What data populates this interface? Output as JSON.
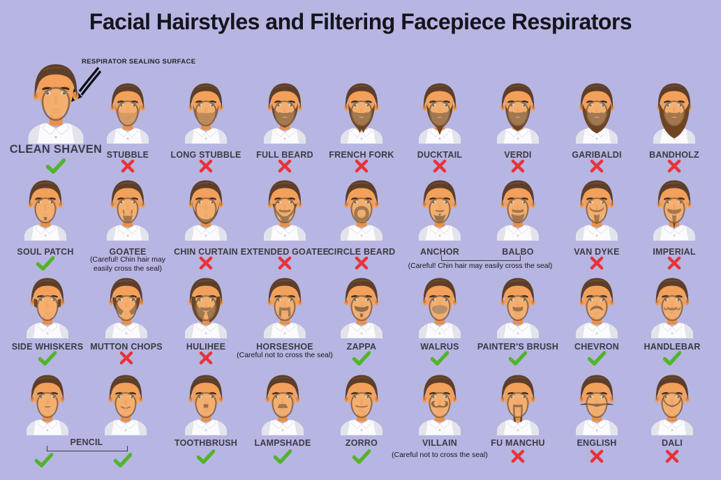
{
  "title": "Facial Hairstyles and Filtering Facepiece Respirators",
  "annotation": {
    "label": "RESPIRATOR SEALING SURFACE"
  },
  "marks": {
    "check_color": "#53b32c",
    "cross_color": "#e73238"
  },
  "background_color": "#b7b5e2",
  "items": [
    {
      "id": "clean-shaven",
      "label": "CLEAN SHAVEN",
      "mark": "check",
      "icon": "face-clean-shaven"
    },
    {
      "id": "stubble",
      "label": "STUBBLE",
      "mark": "cross",
      "icon": "face-stubble"
    },
    {
      "id": "long-stubble",
      "label": "LONG STUBBLE",
      "mark": "cross",
      "icon": "face-long-stubble"
    },
    {
      "id": "full-beard",
      "label": "FULL BEARD",
      "mark": "cross",
      "icon": "face-full-beard"
    },
    {
      "id": "french-fork",
      "label": "FRENCH FORK",
      "mark": "cross",
      "icon": "face-french-fork"
    },
    {
      "id": "ducktail",
      "label": "DUCKTAIL",
      "mark": "cross",
      "icon": "face-ducktail"
    },
    {
      "id": "verdi",
      "label": "VERDI",
      "mark": "cross",
      "icon": "face-verdi"
    },
    {
      "id": "garibaldi",
      "label": "GARIBALDI",
      "mark": "cross",
      "icon": "face-garibaldi"
    },
    {
      "id": "bandholz",
      "label": "BANDHOLZ",
      "mark": "cross",
      "icon": "face-bandholz"
    },
    {
      "id": "soul-patch",
      "label": "SOUL PATCH",
      "mark": "check",
      "icon": "face-soul-patch"
    },
    {
      "id": "goatee",
      "label": "GOATEE",
      "mark": "none",
      "caption": "(Careful! Chin hair may\neasily cross the seal)",
      "icon": "face-goatee"
    },
    {
      "id": "chin-curtain",
      "label": "CHIN CURTAIN",
      "mark": "cross",
      "icon": "face-chin-curtain"
    },
    {
      "id": "extended-goatee",
      "label": "EXTENDED GOATEE",
      "mark": "cross",
      "icon": "face-extended-goatee"
    },
    {
      "id": "circle-beard",
      "label": "CIRCLE BEARD",
      "mark": "cross",
      "icon": "face-circle-beard"
    },
    {
      "id": "anchor",
      "label": "ANCHOR",
      "mark": "none",
      "icon": "face-anchor"
    },
    {
      "id": "balbo",
      "label": "BALBO",
      "mark": "none",
      "icon": "face-balbo"
    },
    {
      "id": "van-dyke",
      "label": "VAN DYKE",
      "mark": "cross",
      "icon": "face-van-dyke"
    },
    {
      "id": "imperial",
      "label": "IMPERIAL",
      "mark": "cross",
      "icon": "face-imperial"
    },
    {
      "id": "side-whiskers",
      "label": "SIDE WHISKERS",
      "mark": "check",
      "icon": "face-side-whiskers"
    },
    {
      "id": "mutton-chops",
      "label": "MUTTON CHOPS",
      "mark": "cross",
      "icon": "face-mutton-chops"
    },
    {
      "id": "hulihee",
      "label": "HULIHEE",
      "mark": "cross",
      "icon": "face-hulihee"
    },
    {
      "id": "horseshoe",
      "label": "HORSESHOE",
      "mark": "none",
      "caption": "(Careful not to cross the seal)",
      "icon": "face-horseshoe"
    },
    {
      "id": "zappa",
      "label": "ZAPPA",
      "mark": "check",
      "icon": "face-zappa"
    },
    {
      "id": "walrus",
      "label": "WALRUS",
      "mark": "check",
      "icon": "face-walrus"
    },
    {
      "id": "painters-brush",
      "label": "PAINTER'S BRUSH",
      "mark": "check",
      "icon": "face-painters-brush"
    },
    {
      "id": "chevron",
      "label": "CHEVRON",
      "mark": "check",
      "icon": "face-chevron"
    },
    {
      "id": "handlebar",
      "label": "HANDLEBAR",
      "mark": "check",
      "icon": "face-handlebar"
    },
    {
      "id": "pencil-a",
      "label": "",
      "mark": "check",
      "icon": "face-pencil"
    },
    {
      "id": "pencil-b",
      "label": "",
      "mark": "check",
      "icon": "face-pencil-wide"
    },
    {
      "id": "toothbrush",
      "label": "TOOTHBRUSH",
      "mark": "check",
      "icon": "face-toothbrush"
    },
    {
      "id": "lampshade",
      "label": "LAMPSHADE",
      "mark": "check",
      "icon": "face-lampshade"
    },
    {
      "id": "zorro",
      "label": "ZORRO",
      "mark": "check",
      "icon": "face-zorro"
    },
    {
      "id": "villain",
      "label": "VILLAIN",
      "mark": "none",
      "caption": "(Careful not to cross the seal)",
      "icon": "face-villain"
    },
    {
      "id": "fu-manchu",
      "label": "FU MANCHU",
      "mark": "cross",
      "icon": "face-fu-manchu"
    },
    {
      "id": "english",
      "label": "ENGLISH",
      "mark": "cross",
      "icon": "face-english"
    },
    {
      "id": "dali",
      "label": "DALI",
      "mark": "cross",
      "icon": "face-dali"
    }
  ],
  "groups": [
    {
      "id": "pencil",
      "label": "PENCIL",
      "members": [
        "pencil-a",
        "pencil-b"
      ]
    },
    {
      "id": "anchor-balbo",
      "caption": "(Careful! Chin hair may easily cross the seal)",
      "members": [
        "anchor",
        "balbo"
      ]
    }
  ]
}
